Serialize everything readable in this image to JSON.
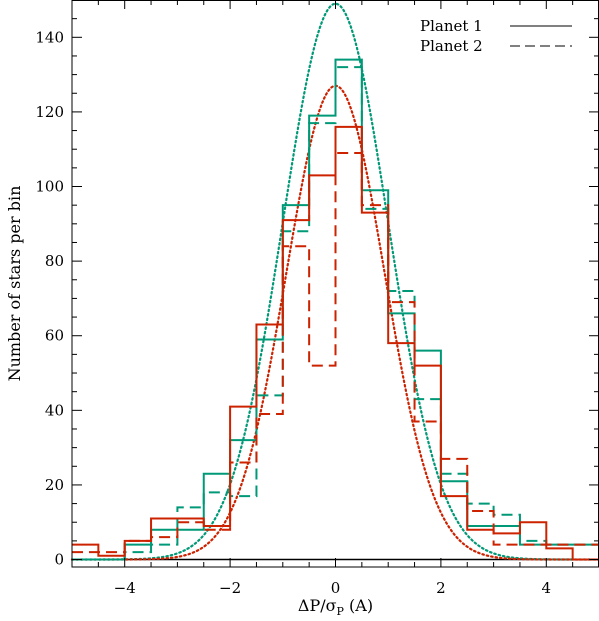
{
  "chart_data": {
    "type": "histogram",
    "xlabel": "ΔP/σ",
    "xlabel_sub": "P",
    "xlabel_suffix": " (A)",
    "ylabel": "Number of stars per bin",
    "xlim": [
      -5,
      5
    ],
    "ylim": [
      -2,
      150
    ],
    "x_ticks": [
      -4,
      -2,
      0,
      2,
      4
    ],
    "x_tick_labels": [
      "−4",
      "−2",
      "0",
      "2",
      "4"
    ],
    "y_ticks": [
      0,
      20,
      40,
      60,
      80,
      100,
      120,
      140
    ],
    "y_tick_labels": [
      "0",
      "20",
      "40",
      "60",
      "80",
      "100",
      "120",
      "140"
    ],
    "grid": false,
    "legend_position": "top-right",
    "legend": [
      {
        "label": "Planet 1",
        "style": "solid"
      },
      {
        "label": "Planet 2",
        "style": "dashed"
      }
    ],
    "bin_edges": [
      -5,
      -4.5,
      -4,
      -3.5,
      -3,
      -2.5,
      -2,
      -1.5,
      -1,
      -0.5,
      0,
      0.5,
      1,
      1.5,
      2,
      2.5,
      3,
      3.5,
      4,
      4.5,
      5
    ],
    "histograms": [
      {
        "name": "Planet 1",
        "color": "#009977",
        "style": "solid",
        "counts": [
          0,
          0,
          4,
          8,
          8,
          23,
          32,
          59,
          95,
          119,
          134,
          99,
          66,
          56,
          21,
          9,
          9,
          4,
          4,
          4
        ]
      },
      {
        "name": "Planet 2",
        "color": "#009977",
        "style": "dashed",
        "counts": [
          0,
          0,
          2,
          4,
          14,
          18,
          17,
          44,
          88,
          117,
          132,
          94,
          72,
          43,
          23,
          15,
          12,
          5,
          4,
          4
        ]
      },
      {
        "name": "Planet 1",
        "color": "#cc2200",
        "style": "solid",
        "counts": [
          4,
          1,
          5,
          11,
          11,
          9,
          41,
          63,
          91,
          103,
          116,
          93,
          58,
          52,
          17,
          8,
          7,
          10,
          3,
          0
        ]
      },
      {
        "name": "Planet 2",
        "color": "#cc2200",
        "style": "dashed",
        "counts": [
          2,
          2,
          5,
          6,
          10,
          8,
          26,
          39,
          84,
          52,
          109,
          95,
          69,
          37,
          27,
          13,
          4,
          4,
          4,
          4
        ]
      }
    ],
    "gaussians": [
      {
        "color": "#009977",
        "style": "dotted",
        "amplitude": 149,
        "mean": 0,
        "sigma": 1.0
      },
      {
        "color": "#cc2200",
        "style": "dotted",
        "amplitude": 127,
        "mean": 0,
        "sigma": 0.93
      }
    ]
  }
}
